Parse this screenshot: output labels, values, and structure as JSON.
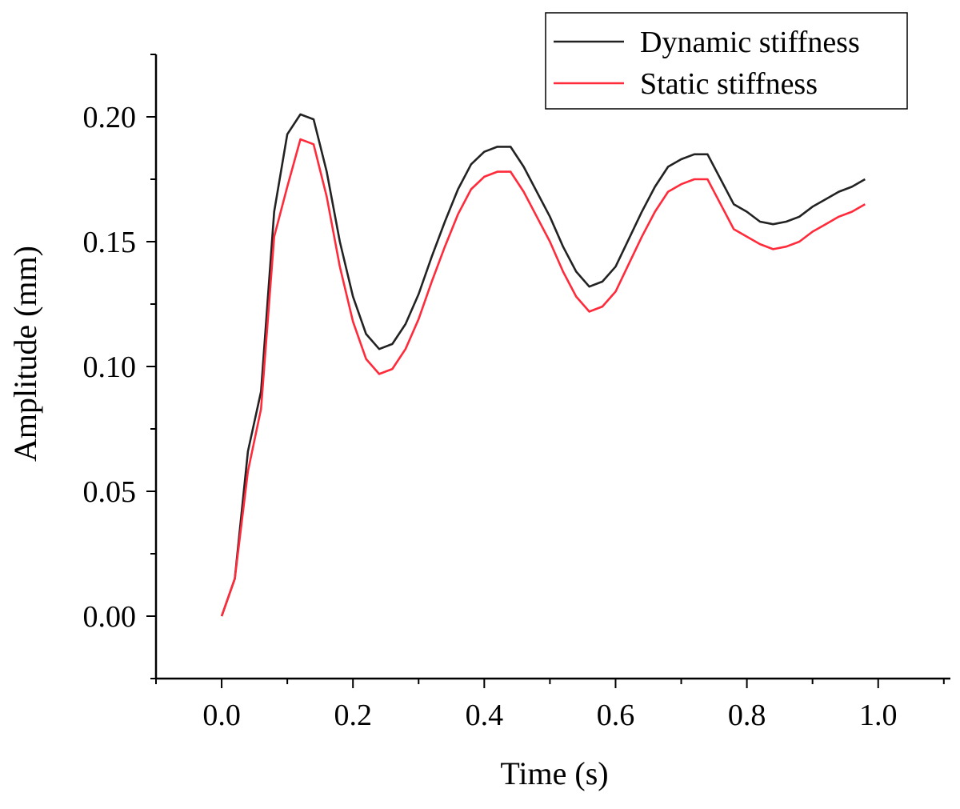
{
  "chart_data": {
    "type": "line",
    "title": "",
    "xlabel": "Time (s)",
    "ylabel": "Amplitude (mm)",
    "xlim": [
      -0.1,
      1.11
    ],
    "ylim": [
      -0.025,
      0.225
    ],
    "xticks": [
      0.0,
      0.2,
      0.4,
      0.6,
      0.8,
      1.0
    ],
    "xtick_labels": [
      "0.0",
      "0.2",
      "0.4",
      "0.6",
      "0.8",
      "1.0"
    ],
    "yticks": [
      0.0,
      0.05,
      0.1,
      0.15,
      0.2
    ],
    "ytick_labels": [
      "0.00",
      "0.05",
      "0.10",
      "0.15",
      "0.20"
    ],
    "grid": false,
    "legend_position": "top-right",
    "series": [
      {
        "name": "Dynamic stiffness",
        "color": "#222222",
        "x": [
          0.0,
          0.02,
          0.04,
          0.06,
          0.08,
          0.1,
          0.12,
          0.14,
          0.16,
          0.18,
          0.2,
          0.22,
          0.24,
          0.26,
          0.28,
          0.3,
          0.32,
          0.34,
          0.36,
          0.38,
          0.4,
          0.42,
          0.44,
          0.46,
          0.48,
          0.5,
          0.52,
          0.54,
          0.56,
          0.58,
          0.6,
          0.62,
          0.64,
          0.66,
          0.68,
          0.7,
          0.72,
          0.74,
          0.76,
          0.78,
          0.8,
          0.82,
          0.84,
          0.86,
          0.88,
          0.9,
          0.92,
          0.94,
          0.96,
          0.98
        ],
        "y": [
          0.0,
          0.015,
          0.066,
          0.09,
          0.162,
          0.193,
          0.201,
          0.199,
          0.178,
          0.15,
          0.128,
          0.113,
          0.107,
          0.109,
          0.117,
          0.129,
          0.144,
          0.158,
          0.171,
          0.181,
          0.186,
          0.188,
          0.188,
          0.18,
          0.17,
          0.16,
          0.148,
          0.138,
          0.132,
          0.134,
          0.14,
          0.151,
          0.162,
          0.172,
          0.18,
          0.183,
          0.185,
          0.185,
          0.175,
          0.165,
          0.162,
          0.158,
          0.157,
          0.158,
          0.16,
          0.164,
          0.167,
          0.17,
          0.172,
          0.175
        ]
      },
      {
        "name": "Static stiffness",
        "color": "#ff2a3a",
        "x": [
          0.0,
          0.02,
          0.04,
          0.06,
          0.08,
          0.1,
          0.12,
          0.14,
          0.16,
          0.18,
          0.2,
          0.22,
          0.24,
          0.26,
          0.28,
          0.3,
          0.32,
          0.34,
          0.36,
          0.38,
          0.4,
          0.42,
          0.44,
          0.46,
          0.48,
          0.5,
          0.52,
          0.54,
          0.56,
          0.58,
          0.6,
          0.62,
          0.64,
          0.66,
          0.68,
          0.7,
          0.72,
          0.74,
          0.76,
          0.78,
          0.8,
          0.82,
          0.84,
          0.86,
          0.88,
          0.9,
          0.92,
          0.94,
          0.96,
          0.98
        ],
        "y": [
          0.0,
          0.015,
          0.058,
          0.083,
          0.152,
          0.172,
          0.191,
          0.189,
          0.168,
          0.14,
          0.118,
          0.103,
          0.097,
          0.099,
          0.107,
          0.119,
          0.134,
          0.148,
          0.161,
          0.171,
          0.176,
          0.178,
          0.178,
          0.17,
          0.16,
          0.15,
          0.138,
          0.128,
          0.122,
          0.124,
          0.13,
          0.141,
          0.152,
          0.162,
          0.17,
          0.173,
          0.175,
          0.175,
          0.165,
          0.155,
          0.152,
          0.149,
          0.147,
          0.148,
          0.15,
          0.154,
          0.157,
          0.16,
          0.162,
          0.165
        ]
      }
    ]
  }
}
